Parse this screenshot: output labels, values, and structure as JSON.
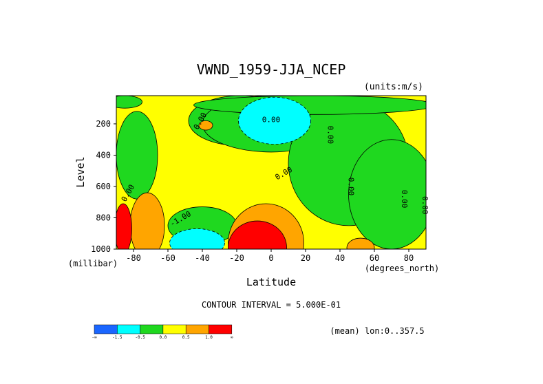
{
  "chart_data": {
    "type": "heatmap",
    "title": "VWND_1959-JJA_NCEP",
    "units_label": "(units:m/s)",
    "xlabel": "Latitude",
    "x_units_label": "(degrees_north)",
    "ylabel": "Level",
    "y_units_label": "(millibar)",
    "xlim": [
      -90,
      90
    ],
    "ylim": [
      1000,
      20
    ],
    "y_axis_inverted": true,
    "x_ticks": [
      -80,
      -60,
      -40,
      -20,
      0,
      20,
      40,
      60,
      80
    ],
    "y_ticks": [
      200,
      400,
      600,
      800,
      1000
    ],
    "contour_labels": [
      "0.00",
      "0.00",
      "-1.00",
      "0.00",
      "0.00",
      "0.00",
      "0.00",
      "0.00",
      "0.00"
    ],
    "contour_interval_text": "CONTOUR INTERVAL = 5.000E-01",
    "mean_text": "(mean) lon:0..357.5",
    "legend": {
      "colors": [
        "#1a66ff",
        "#00ffff",
        "#1fd81f",
        "#ffff00",
        "#ffa500",
        "#ff0000"
      ],
      "labels": [
        "-∞",
        "-1.5",
        "-0.5",
        "0.0",
        "0.5",
        "1.0",
        "∞"
      ]
    },
    "regions": [
      {
        "cls": 2,
        "cx": -85,
        "cy": 60,
        "rx": 10,
        "ry": 40
      },
      {
        "cls": 2,
        "cx": -78,
        "cy": 400,
        "rx": 12,
        "ry": 280
      },
      {
        "cls": 2,
        "cx": -18,
        "cy": 180,
        "rx": 30,
        "ry": 160
      },
      {
        "cls": 2,
        "cx": 0,
        "cy": 200,
        "rx": 40,
        "ry": 180
      },
      {
        "cls": 2,
        "cx": -40,
        "cy": 850,
        "rx": 20,
        "ry": 120
      },
      {
        "cls": 2,
        "cx": 45,
        "cy": 450,
        "rx": 35,
        "ry": 400
      },
      {
        "cls": 2,
        "cx": 70,
        "cy": 650,
        "rx": 25,
        "ry": 350
      },
      {
        "cls": 2,
        "cx": 25,
        "cy": 80,
        "rx": 70,
        "ry": 60
      },
      {
        "cls": 0,
        "cx": 2,
        "cy": 180,
        "rx": 16,
        "ry": 110
      },
      {
        "cls": 1,
        "cx": 2,
        "cy": 180,
        "rx": 21,
        "ry": 150
      },
      {
        "cls": 1,
        "cx": -43,
        "cy": 960,
        "rx": 16,
        "ry": 90
      },
      {
        "cls": 4,
        "cx": -3,
        "cy": 960,
        "rx": 22,
        "ry": 250
      },
      {
        "cls": 5,
        "cx": -8,
        "cy": 990,
        "rx": 17,
        "ry": 170
      },
      {
        "cls": 4,
        "cx": -72,
        "cy": 850,
        "rx": 10,
        "ry": 210
      },
      {
        "cls": 5,
        "cx": -86,
        "cy": 870,
        "rx": 5,
        "ry": 160
      },
      {
        "cls": 4,
        "cx": -38,
        "cy": 210,
        "rx": 4,
        "ry": 30
      },
      {
        "cls": 4,
        "cx": 52,
        "cy": 990,
        "rx": 8,
        "ry": 60
      }
    ]
  }
}
